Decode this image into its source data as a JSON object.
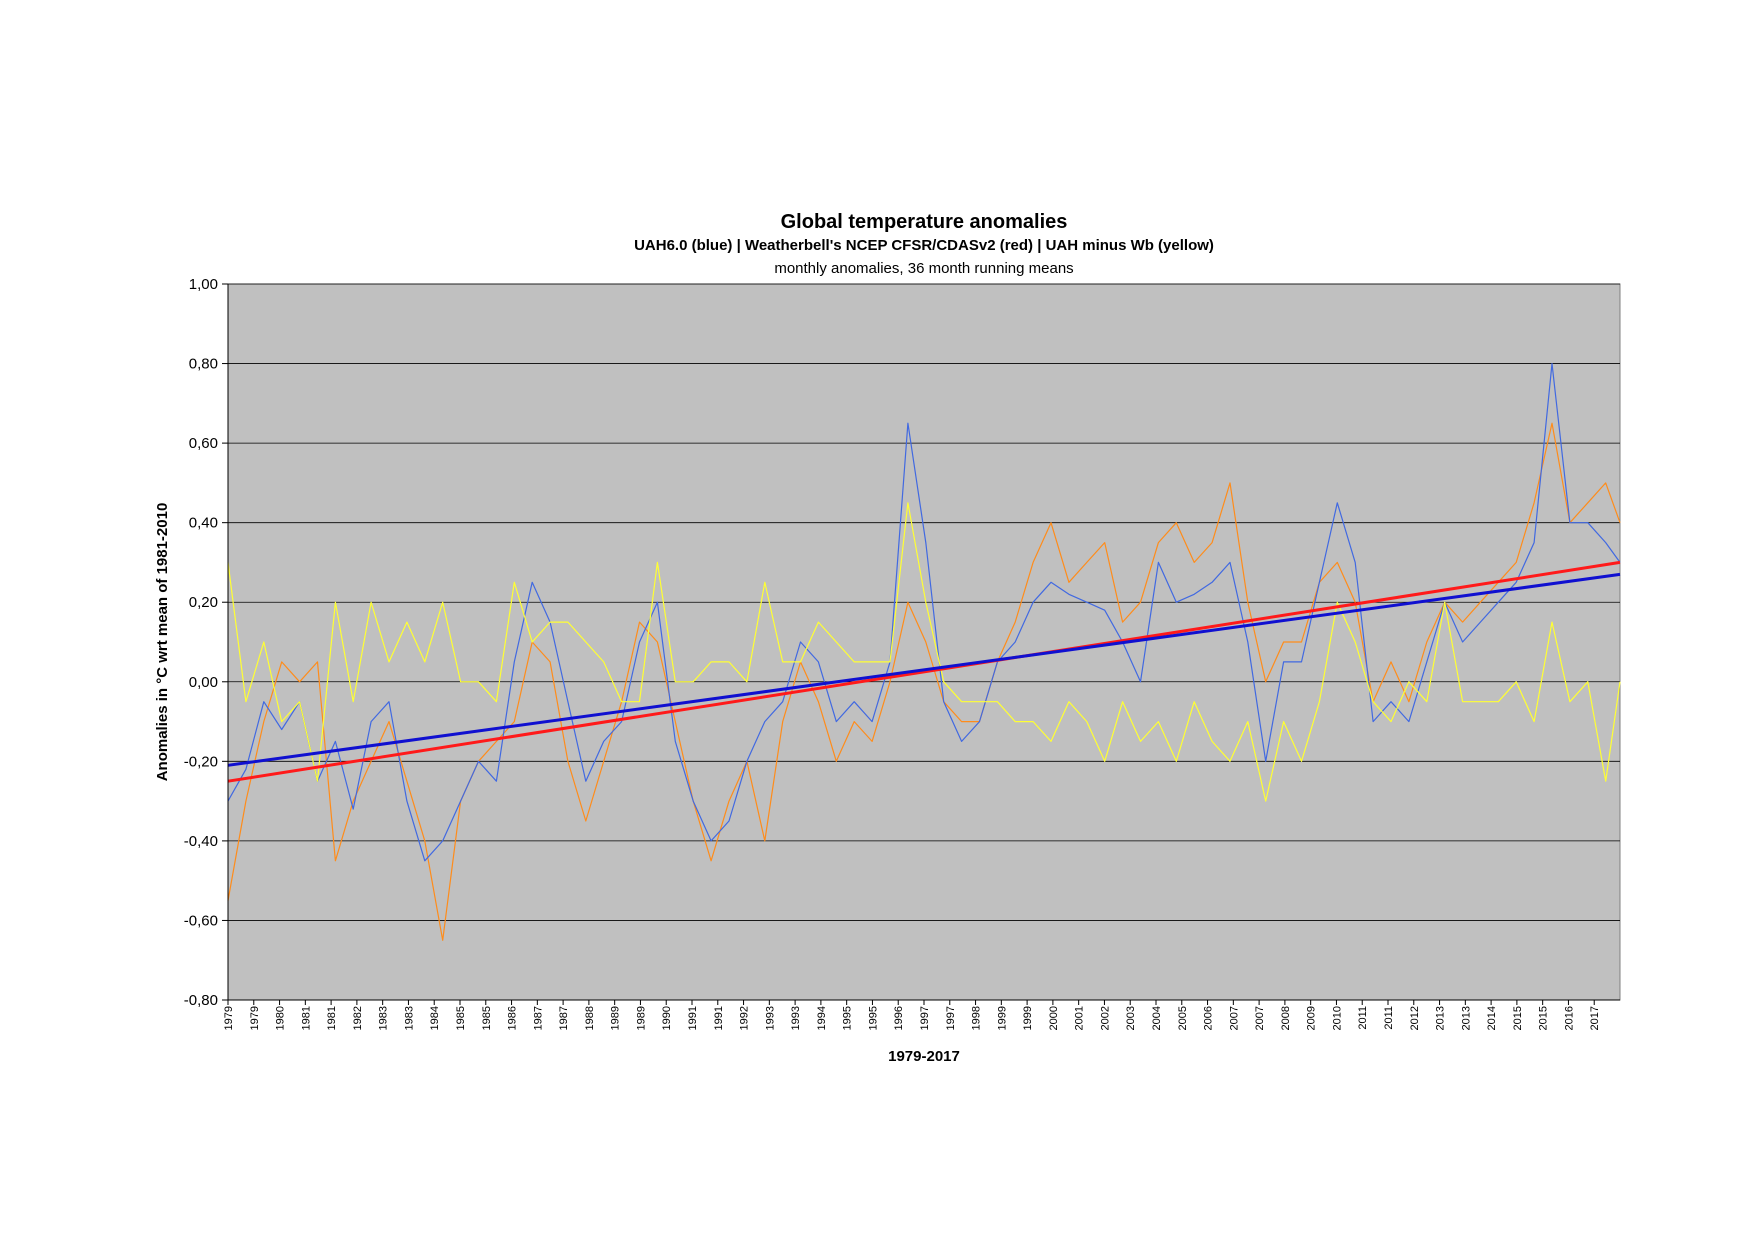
{
  "chart_data": {
    "type": "line",
    "title": "Global temperature anomalies",
    "subtitle": "UAH6.0 (blue) | Weatherbell's NCEP CFSR/CDASv2 (red) | UAH minus Wb (yellow)",
    "subtitle2": "monthly anomalies, 36 month running means",
    "xlabel": "1979-2017",
    "ylabel": "Anomalies in °C wrt mean of 1981-2010",
    "xlim": [
      1979.0,
      2017.9
    ],
    "ylim": [
      -0.8,
      1.0
    ],
    "grid": true,
    "yticks": [
      "-0,80",
      "-0,60",
      "-0,40",
      "-0,20",
      "0,00",
      "0,20",
      "0,40",
      "0,60",
      "0,80",
      "1,00"
    ],
    "ytick_values": [
      -0.8,
      -0.6,
      -0.4,
      -0.2,
      0.0,
      0.2,
      0.4,
      0.6,
      0.8,
      1.0
    ],
    "xticks": [
      "1979",
      "1979",
      "1980",
      "1981",
      "1981",
      "1982",
      "1983",
      "1983",
      "1984",
      "1985",
      "1985",
      "1986",
      "1987",
      "1987",
      "1988",
      "1989",
      "1989",
      "1990",
      "1991",
      "1991",
      "1992",
      "1993",
      "1993",
      "1994",
      "1995",
      "1995",
      "1996",
      "1997",
      "1997",
      "1998",
      "1999",
      "1999",
      "2000",
      "2001",
      "2002",
      "2003",
      "2004",
      "2005",
      "2006",
      "2007",
      "2007",
      "2008",
      "2009",
      "2010",
      "2011",
      "2011",
      "2012",
      "2013",
      "2013",
      "2014",
      "2015",
      "2015",
      "2016",
      "2017"
    ],
    "series": [
      {
        "name": "UAH6.0",
        "color": "#4169e1",
        "x": [
          1979.0,
          1979.5,
          1980.0,
          1980.5,
          1981.0,
          1981.5,
          1982.0,
          1982.5,
          1983.0,
          1983.5,
          1984.0,
          1984.5,
          1985.0,
          1985.5,
          1986.0,
          1986.5,
          1987.0,
          1987.5,
          1988.0,
          1988.5,
          1989.0,
          1989.5,
          1990.0,
          1990.5,
          1991.0,
          1991.5,
          1992.0,
          1992.5,
          1993.0,
          1993.5,
          1994.0,
          1994.5,
          1995.0,
          1995.5,
          1996.0,
          1996.5,
          1997.0,
          1997.5,
          1998.0,
          1998.5,
          1999.0,
          1999.5,
          2000.0,
          2000.5,
          2001.0,
          2001.5,
          2002.0,
          2002.5,
          2003.0,
          2003.5,
          2004.0,
          2004.5,
          2005.0,
          2005.5,
          2006.0,
          2006.5,
          2007.0,
          2007.5,
          2008.0,
          2008.5,
          2009.0,
          2009.5,
          2010.0,
          2010.5,
          2011.0,
          2011.5,
          2012.0,
          2012.5,
          2013.0,
          2013.5,
          2014.0,
          2014.5,
          2015.0,
          2015.5,
          2016.0,
          2016.5,
          2017.0,
          2017.5,
          2017.9
        ],
        "y": [
          -0.3,
          -0.22,
          -0.05,
          -0.12,
          -0.05,
          -0.25,
          -0.15,
          -0.32,
          -0.1,
          -0.05,
          -0.3,
          -0.45,
          -0.4,
          -0.3,
          -0.2,
          -0.25,
          0.05,
          0.25,
          0.15,
          -0.05,
          -0.25,
          -0.15,
          -0.1,
          0.1,
          0.2,
          -0.15,
          -0.3,
          -0.4,
          -0.35,
          -0.2,
          -0.1,
          -0.05,
          0.1,
          0.05,
          -0.1,
          -0.05,
          -0.1,
          0.05,
          0.65,
          0.35,
          -0.05,
          -0.15,
          -0.1,
          0.05,
          0.1,
          0.2,
          0.25,
          0.22,
          0.2,
          0.18,
          0.1,
          0.0,
          0.3,
          0.2,
          0.22,
          0.25,
          0.3,
          0.1,
          -0.2,
          0.05,
          0.05,
          0.25,
          0.45,
          0.3,
          -0.1,
          -0.05,
          -0.1,
          0.05,
          0.2,
          0.1,
          0.15,
          0.2,
          0.25,
          0.35,
          0.8,
          0.4,
          0.4,
          0.35,
          0.3
        ]
      },
      {
        "name": "Weatherbell NCEP CFSR/CDASv2",
        "color": "#ff8c1a",
        "x": [
          1979.0,
          1979.5,
          1980.0,
          1980.5,
          1981.0,
          1981.5,
          1982.0,
          1982.5,
          1983.0,
          1983.5,
          1984.0,
          1984.5,
          1985.0,
          1985.5,
          1986.0,
          1986.5,
          1987.0,
          1987.5,
          1988.0,
          1988.5,
          1989.0,
          1989.5,
          1990.0,
          1990.5,
          1991.0,
          1991.5,
          1992.0,
          1992.5,
          1993.0,
          1993.5,
          1994.0,
          1994.5,
          1995.0,
          1995.5,
          1996.0,
          1996.5,
          1997.0,
          1997.5,
          1998.0,
          1998.5,
          1999.0,
          1999.5,
          2000.0,
          2000.5,
          2001.0,
          2001.5,
          2002.0,
          2002.5,
          2003.0,
          2003.5,
          2004.0,
          2004.5,
          2005.0,
          2005.5,
          2006.0,
          2006.5,
          2007.0,
          2007.5,
          2008.0,
          2008.5,
          2009.0,
          2009.5,
          2010.0,
          2010.5,
          2011.0,
          2011.5,
          2012.0,
          2012.5,
          2013.0,
          2013.5,
          2014.0,
          2014.5,
          2015.0,
          2015.5,
          2016.0,
          2016.5,
          2017.0,
          2017.5,
          2017.9
        ],
        "y": [
          -0.55,
          -0.3,
          -0.1,
          0.05,
          0.0,
          0.05,
          -0.45,
          -0.3,
          -0.2,
          -0.1,
          -0.25,
          -0.4,
          -0.65,
          -0.3,
          -0.2,
          -0.15,
          -0.1,
          0.1,
          0.05,
          -0.2,
          -0.35,
          -0.2,
          -0.05,
          0.15,
          0.1,
          -0.1,
          -0.3,
          -0.45,
          -0.3,
          -0.2,
          -0.4,
          -0.1,
          0.05,
          -0.05,
          -0.2,
          -0.1,
          -0.15,
          0.0,
          0.2,
          0.1,
          -0.05,
          -0.1,
          -0.1,
          0.05,
          0.15,
          0.3,
          0.4,
          0.25,
          0.3,
          0.35,
          0.15,
          0.2,
          0.35,
          0.4,
          0.3,
          0.35,
          0.5,
          0.2,
          0.0,
          0.1,
          0.1,
          0.25,
          0.3,
          0.2,
          -0.05,
          0.05,
          -0.05,
          0.1,
          0.2,
          0.15,
          0.2,
          0.25,
          0.3,
          0.45,
          0.65,
          0.4,
          0.45,
          0.5,
          0.4
        ]
      },
      {
        "name": "UAH minus Wb",
        "color": "#ffff33",
        "x": [
          1979.0,
          1979.5,
          1980.0,
          1980.5,
          1981.0,
          1981.5,
          1982.0,
          1982.5,
          1983.0,
          1983.5,
          1984.0,
          1984.5,
          1985.0,
          1985.5,
          1986.0,
          1986.5,
          1987.0,
          1987.5,
          1988.0,
          1988.5,
          1989.0,
          1989.5,
          1990.0,
          1990.5,
          1991.0,
          1991.5,
          1992.0,
          1992.5,
          1993.0,
          1993.5,
          1994.0,
          1994.5,
          1995.0,
          1995.5,
          1996.0,
          1996.5,
          1997.0,
          1997.5,
          1998.0,
          1998.5,
          1999.0,
          1999.5,
          2000.0,
          2000.5,
          2001.0,
          2001.5,
          2002.0,
          2002.5,
          2003.0,
          2003.5,
          2004.0,
          2004.5,
          2005.0,
          2005.5,
          2006.0,
          2006.5,
          2007.0,
          2007.5,
          2008.0,
          2008.5,
          2009.0,
          2009.5,
          2010.0,
          2010.5,
          2011.0,
          2011.5,
          2012.0,
          2012.5,
          2013.0,
          2013.5,
          2014.0,
          2014.5,
          2015.0,
          2015.5,
          2016.0,
          2016.5,
          2017.0,
          2017.5,
          2017.9
        ],
        "y": [
          0.3,
          -0.05,
          0.1,
          -0.1,
          -0.05,
          -0.25,
          0.2,
          -0.05,
          0.2,
          0.05,
          0.15,
          0.05,
          0.2,
          0.0,
          0.0,
          -0.05,
          0.25,
          0.1,
          0.15,
          0.15,
          0.1,
          0.05,
          -0.05,
          -0.05,
          0.3,
          0.0,
          0.0,
          0.05,
          0.05,
          0.0,
          0.25,
          0.05,
          0.05,
          0.15,
          0.1,
          0.05,
          0.05,
          0.05,
          0.45,
          0.2,
          0.0,
          -0.05,
          -0.05,
          -0.05,
          -0.1,
          -0.1,
          -0.15,
          -0.05,
          -0.1,
          -0.2,
          -0.05,
          -0.15,
          -0.1,
          -0.2,
          -0.05,
          -0.15,
          -0.2,
          -0.1,
          -0.3,
          -0.1,
          -0.2,
          -0.05,
          0.2,
          0.1,
          -0.05,
          -0.1,
          0.0,
          -0.05,
          0.2,
          -0.05,
          -0.05,
          -0.05,
          0.0,
          -0.1,
          0.15,
          -0.05,
          0.0,
          -0.25,
          0.0
        ]
      },
      {
        "name": "UAH6.0 trend",
        "color": "#1010d0",
        "x": [
          1979.0,
          2017.9
        ],
        "y": [
          -0.21,
          0.27
        ]
      },
      {
        "name": "Wb trend",
        "color": "#ff1a1a",
        "x": [
          1979.0,
          2017.9
        ],
        "y": [
          -0.25,
          0.3
        ]
      }
    ]
  }
}
